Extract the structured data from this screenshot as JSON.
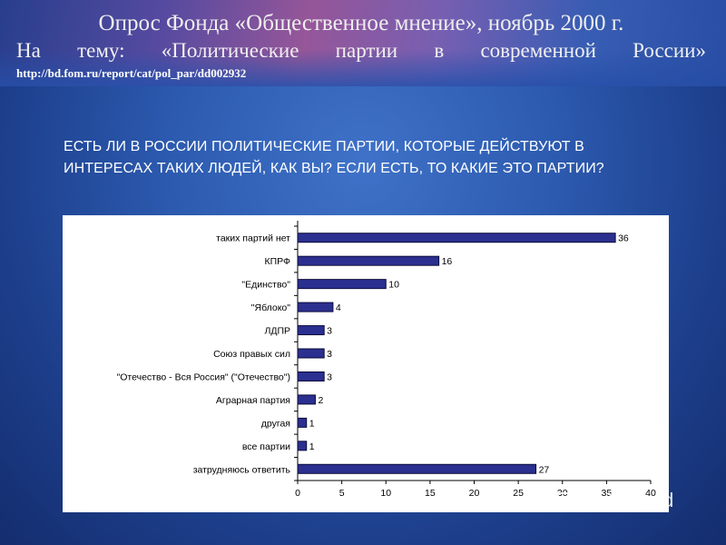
{
  "header": {
    "line1": "Опрос Фонда «Общественное мнение», ноябрь 2000 г.",
    "line2": "На тему: «Политические партии в современной России»",
    "url": "http://bd.fom.ru/report/cat/pol_par/dd002932"
  },
  "question": "ЕСТЬ ЛИ В РОССИИ ПОЛИТИЧЕСКИЕ ПАРТИИ, КОТОРЫЕ ДЕЙСТВУЮТ В ИНТЕРЕСАХ ТАКИХ ЛЮДЕЙ, КАК ВЫ? ЕСЛИ ЕСТЬ, ТО КАКИЕ ЭТО ПАРТИИ?",
  "chart_data": {
    "type": "bar",
    "orientation": "horizontal",
    "categories": [
      "таких партий нет",
      "КПРФ",
      "\"Единство\"",
      "\"Яблоко\"",
      "ЛДПР",
      "Союз правых сил",
      "\"Отечество - Вся Россия\" (\"Отечество\")",
      "Аграрная партия",
      "другая",
      "все партии",
      "затрудняюсь ответить"
    ],
    "values": [
      36,
      16,
      10,
      4,
      3,
      3,
      3,
      2,
      1,
      1,
      27
    ],
    "value_labels": [
      "36",
      "16",
      "10",
      "4",
      "3",
      "3",
      "3",
      "2",
      "1",
      "1",
      "27"
    ],
    "xlim": [
      0,
      40
    ],
    "xticks": [
      0,
      5,
      10,
      15,
      20,
      25,
      30,
      35,
      40
    ],
    "xtick_labels": [
      "0",
      "5",
      "10",
      "15",
      "20",
      "25",
      "30",
      "35",
      "40"
    ],
    "title": "",
    "xlabel": "",
    "ylabel": "",
    "grid": false,
    "bar_color": "#2b2f8f",
    "bar_edge_color": "#0b0b3a"
  },
  "watermark": "MyShared",
  "colors": {
    "background": "#2c5aaf",
    "text": "#ffffff",
    "panel": "#ffffff"
  }
}
